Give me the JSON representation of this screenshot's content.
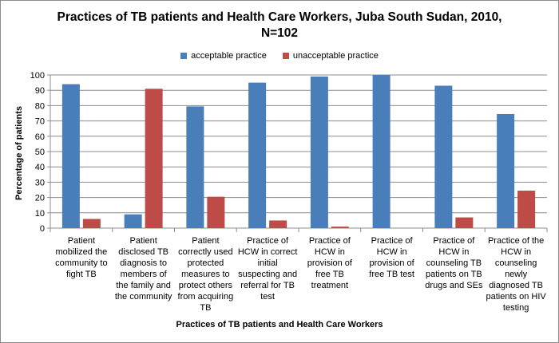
{
  "chart_data": {
    "type": "bar",
    "title_line1": "Practices of TB patients and Health Care Workers, Juba South Sudan, 2010,",
    "title_line2": "N=102",
    "xlabel": "Practices of TB patients and Health Care Workers",
    "ylabel": "Percentage of patients",
    "ylim": [
      0,
      100
    ],
    "yticks": [
      0,
      10,
      20,
      30,
      40,
      50,
      60,
      70,
      80,
      90,
      100
    ],
    "grid": true,
    "legend_position": "top",
    "categories": [
      "Patient mobilized the community to fight TB",
      "Patient disclosed TB diagnosis to members of the family and the community",
      "Patient correctly used protected measures to protect others from acquiring TB",
      "Practice of HCW in correct initial suspecting and referral for TB test",
      "Practice of HCW in provision of free TB treatment",
      "Practice of HCW in provision of free TB test",
      "Practice of HCW in counseling TB patients on TB drugs and SEs",
      "Practice of the HCW in counseling newly diagnosed TB patients on HIV testing"
    ],
    "category_lines": [
      [
        "Patient",
        "mobilized the",
        "community to",
        "fight TB"
      ],
      [
        "Patient",
        "disclosed TB",
        "diagnosis to",
        "members of",
        "the family and",
        "the community"
      ],
      [
        "Patient",
        "correctly used",
        "protected",
        "measures to",
        "protect others",
        "from acquiring",
        "TB"
      ],
      [
        "Practice of",
        "HCW in correct",
        "initial",
        "suspecting and",
        "referral for TB",
        "test"
      ],
      [
        "Practice of",
        "HCW in",
        "provision of",
        "free TB",
        "treatment"
      ],
      [
        "Practice of",
        "HCW in",
        "provision of",
        "free TB test"
      ],
      [
        "Practice of",
        "HCW in",
        "counseling TB",
        "patients on TB",
        "drugs and SEs"
      ],
      [
        "Practice of the",
        "HCW in",
        "counseling",
        "newly",
        "diagnosed TB",
        "patients on HIV",
        "testing"
      ]
    ],
    "series": [
      {
        "name": "acceptable practice",
        "color": "#4a7ebb",
        "values": [
          94,
          9,
          79.5,
          95,
          99,
          100,
          93,
          74.5
        ]
      },
      {
        "name": "unacceptable practice",
        "color": "#be4b48",
        "values": [
          6,
          91,
          20.5,
          5,
          1,
          0,
          7,
          24.5
        ]
      }
    ]
  }
}
